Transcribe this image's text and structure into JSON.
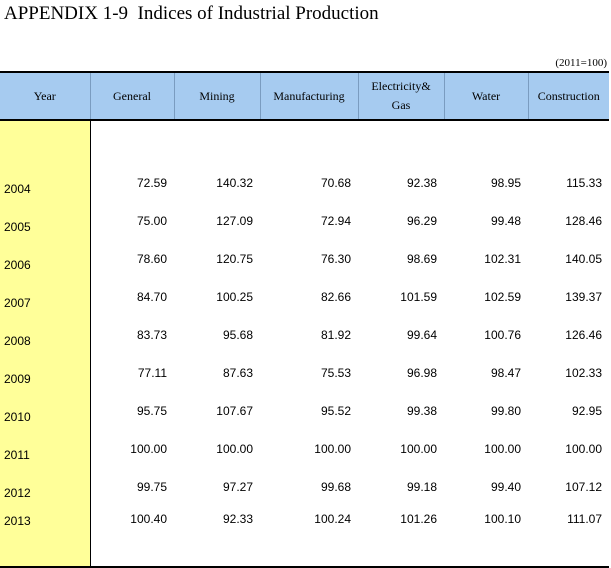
{
  "title": "APPENDIX 1-9  Indices of Industrial Production",
  "base_note": "(2011=100)",
  "headers": {
    "year": "Year",
    "general": "General",
    "mining": "Mining",
    "manufacturing": "Manufacturing",
    "electricity_line1": "Electricity&",
    "electricity_line2": "Gas",
    "water": "Water",
    "construction": "Construction"
  },
  "rows": [
    {
      "year": "2004",
      "general": "72.59",
      "mining": "140.32",
      "manufacturing": "70.68",
      "electricity": "92.38",
      "water": "98.95",
      "construction": "115.33"
    },
    {
      "year": "2005",
      "general": "75.00",
      "mining": "127.09",
      "manufacturing": "72.94",
      "electricity": "96.29",
      "water": "99.48",
      "construction": "128.46"
    },
    {
      "year": "2006",
      "general": "78.60",
      "mining": "120.75",
      "manufacturing": "76.30",
      "electricity": "98.69",
      "water": "102.31",
      "construction": "140.05"
    },
    {
      "year": "2007",
      "general": "84.70",
      "mining": "100.25",
      "manufacturing": "82.66",
      "electricity": "101.59",
      "water": "102.59",
      "construction": "139.37"
    },
    {
      "year": "2008",
      "general": "83.73",
      "mining": "95.68",
      "manufacturing": "81.92",
      "electricity": "99.64",
      "water": "100.76",
      "construction": "126.46"
    },
    {
      "year": "2009",
      "general": "77.11",
      "mining": "87.63",
      "manufacturing": "75.53",
      "electricity": "96.98",
      "water": "98.47",
      "construction": "102.33"
    },
    {
      "year": "2010",
      "general": "95.75",
      "mining": "107.67",
      "manufacturing": "95.52",
      "electricity": "99.38",
      "water": "99.80",
      "construction": "92.95"
    },
    {
      "year": "2011",
      "general": "100.00",
      "mining": "100.00",
      "manufacturing": "100.00",
      "electricity": "100.00",
      "water": "100.00",
      "construction": "100.00"
    },
    {
      "year": "2012",
      "general": "99.75",
      "mining": "97.27",
      "manufacturing": "99.68",
      "electricity": "99.18",
      "water": "99.40",
      "construction": "107.12"
    },
    {
      "year": "2013",
      "general": "100.40",
      "mining": "92.33",
      "manufacturing": "100.24",
      "electricity": "101.26",
      "water": "100.10",
      "construction": "111.07"
    }
  ],
  "colors": {
    "header_bg": "#a6cbf0",
    "year_col_bg": "#ffff99"
  }
}
